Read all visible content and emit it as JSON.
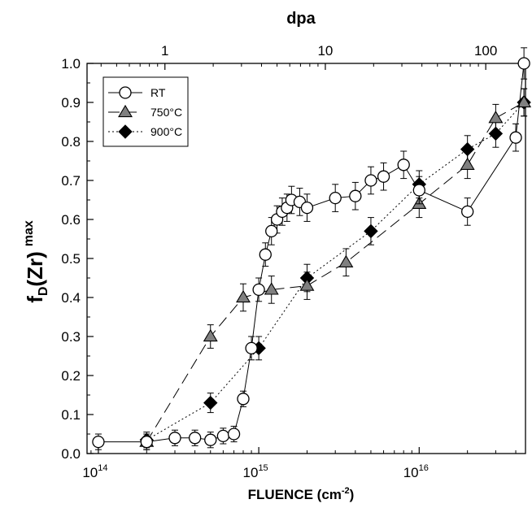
{
  "chart_data": {
    "type": "scatter",
    "title": "",
    "xlabel": "FLUENCE (cm",
    "xlabel_sup": "-2",
    "xlabel_end": ")",
    "x2label": "dpa",
    "ylabel_main": "f",
    "ylabel_sub": "D",
    "ylabel_paren": "(Zr)",
    "ylabel_sup": "max",
    "x_scale": "log",
    "xlim": [
      85000000000000.0,
      4.6e+16
    ],
    "ylim": [
      0.0,
      1.0
    ],
    "x_ticks": [
      {
        "value": 100000000000000.0,
        "base": "10",
        "exp": "14"
      },
      {
        "value": 1000000000000000.0,
        "base": "10",
        "exp": "15"
      },
      {
        "value": 1e+16,
        "base": "10",
        "exp": "16"
      }
    ],
    "dpa_ticks": [
      {
        "fluence": 260000000000000.0,
        "label": "1"
      },
      {
        "fluence": 2600000000000000.0,
        "label": "10"
      },
      {
        "fluence": 2.6e+16,
        "label": "100"
      }
    ],
    "y_ticks": [
      "0.0",
      "0.1",
      "0.2",
      "0.3",
      "0.4",
      "0.5",
      "0.6",
      "0.7",
      "0.8",
      "0.9",
      "1.0"
    ],
    "grid": false,
    "legend_position": "top-left",
    "series": [
      {
        "name": "RT",
        "marker": "circle",
        "fill": "#ffffff",
        "line": "solid",
        "x": [
          100000000000000.0,
          200000000000000.0,
          300000000000000.0,
          400000000000000.0,
          500000000000000.0,
          600000000000000.0,
          700000000000000.0,
          800000000000000.0,
          900000000000000.0,
          1000000000000000.0,
          1100000000000000.0,
          1200000000000000.0,
          1300000000000000.0,
          1400000000000000.0,
          1500000000000000.0,
          1600000000000000.0,
          1800000000000000.0,
          2000000000000000.0,
          3000000000000000.0,
          4000000000000000.0,
          5000000000000000.0,
          6000000000000000.0,
          8000000000000000.0,
          1e+16,
          2e+16,
          4e+16,
          4.5e+16
        ],
        "y": [
          0.03,
          0.03,
          0.04,
          0.04,
          0.035,
          0.045,
          0.05,
          0.14,
          0.27,
          0.42,
          0.51,
          0.57,
          0.6,
          0.62,
          0.63,
          0.65,
          0.645,
          0.63,
          0.655,
          0.66,
          0.7,
          0.71,
          0.74,
          0.675,
          0.62,
          0.81,
          1.0
        ],
        "err": [
          0.02,
          0.02,
          0.02,
          0.02,
          0.02,
          0.02,
          0.02,
          0.02,
          0.03,
          0.03,
          0.03,
          0.035,
          0.035,
          0.035,
          0.035,
          0.035,
          0.035,
          0.035,
          0.035,
          0.035,
          0.035,
          0.035,
          0.035,
          0.035,
          0.035,
          0.035,
          0.04
        ]
      },
      {
        "name": "750°C",
        "marker": "triangle",
        "fill": "#808080",
        "line": "long-dash",
        "x": [
          200000000000000.0,
          500000000000000.0,
          800000000000000.0,
          1200000000000000.0,
          2000000000000000.0,
          3500000000000000.0,
          1e+16,
          2e+16,
          3e+16,
          4.5e+16
        ],
        "y": [
          0.03,
          0.3,
          0.4,
          0.42,
          0.43,
          0.49,
          0.64,
          0.74,
          0.86,
          0.9
        ],
        "err": [
          0.02,
          0.03,
          0.035,
          0.035,
          0.035,
          0.035,
          0.035,
          0.035,
          0.035,
          0.035
        ]
      },
      {
        "name": "900°C",
        "marker": "diamond",
        "fill": "#000000",
        "line": "dotted",
        "x": [
          200000000000000.0,
          500000000000000.0,
          1000000000000000.0,
          2000000000000000.0,
          5000000000000000.0,
          1e+16,
          2e+16,
          3e+16,
          4.5e+16
        ],
        "y": [
          0.035,
          0.13,
          0.27,
          0.45,
          0.57,
          0.69,
          0.78,
          0.82,
          0.9
        ],
        "err": [
          0.02,
          0.025,
          0.03,
          0.035,
          0.035,
          0.035,
          0.035,
          0.035,
          0.035
        ]
      }
    ]
  }
}
